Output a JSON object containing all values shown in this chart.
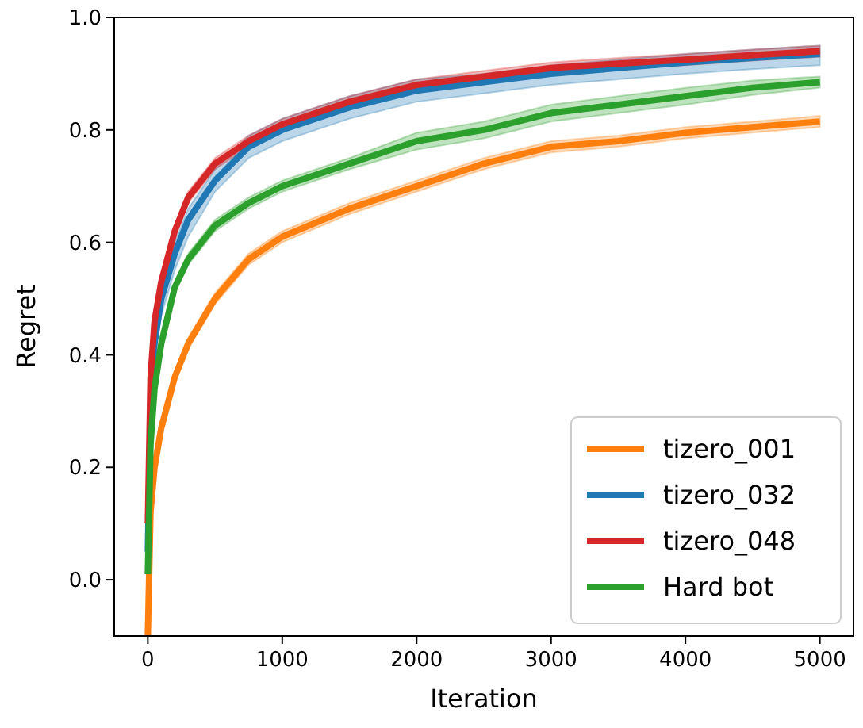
{
  "chart_data": {
    "type": "line",
    "xlabel": "Iteration",
    "ylabel": "Regret",
    "xlim": [
      -250,
      5250
    ],
    "ylim": [
      -0.1,
      1.0
    ],
    "xticks": [
      0,
      1000,
      2000,
      3000,
      4000,
      5000
    ],
    "yticks": [
      {
        "value": 0,
        "label": "0.0"
      },
      {
        "value": 0.2,
        "label": "0.2"
      },
      {
        "value": 0.4,
        "label": "0.4"
      },
      {
        "value": 0.6,
        "label": "0.6"
      },
      {
        "value": 0.8,
        "label": "0.8"
      },
      {
        "value": 1,
        "label": "1.0"
      }
    ],
    "legend": "bottom right",
    "grid": false,
    "x": [
      0,
      20,
      50,
      100,
      200,
      300,
      500,
      750,
      1000,
      1500,
      2000,
      2500,
      3000,
      3500,
      4000,
      4500,
      5000
    ],
    "series": [
      {
        "name": "tizero_001",
        "color": "#ff7f0e",
        "values": [
          -0.1,
          0.12,
          0.2,
          0.27,
          0.36,
          0.42,
          0.5,
          0.57,
          0.61,
          0.66,
          0.7,
          0.74,
          0.77,
          0.78,
          0.795,
          0.805,
          0.815
        ],
        "lower": [
          -0.1,
          0.11,
          0.19,
          0.26,
          0.35,
          0.41,
          0.49,
          0.56,
          0.6,
          0.65,
          0.69,
          0.73,
          0.76,
          0.77,
          0.785,
          0.795,
          0.805
        ],
        "upper": [
          -0.1,
          0.13,
          0.21,
          0.28,
          0.37,
          0.43,
          0.51,
          0.58,
          0.62,
          0.67,
          0.71,
          0.75,
          0.78,
          0.79,
          0.805,
          0.815,
          0.825
        ]
      },
      {
        "name": "tizero_032",
        "color": "#1f77b4",
        "values": [
          0.05,
          0.3,
          0.42,
          0.5,
          0.58,
          0.64,
          0.71,
          0.77,
          0.8,
          0.84,
          0.87,
          0.885,
          0.9,
          0.91,
          0.92,
          0.928,
          0.935
        ],
        "lower": [
          0.05,
          0.28,
          0.4,
          0.47,
          0.55,
          0.61,
          0.69,
          0.75,
          0.78,
          0.82,
          0.85,
          0.865,
          0.88,
          0.89,
          0.9,
          0.908,
          0.915
        ],
        "upper": [
          0.05,
          0.32,
          0.44,
          0.52,
          0.6,
          0.66,
          0.73,
          0.79,
          0.82,
          0.86,
          0.89,
          0.9,
          0.915,
          0.925,
          0.935,
          0.943,
          0.95
        ]
      },
      {
        "name": "tizero_048",
        "color": "#d62728",
        "values": [
          0.1,
          0.36,
          0.46,
          0.53,
          0.62,
          0.68,
          0.74,
          0.78,
          0.81,
          0.85,
          0.88,
          0.895,
          0.91,
          0.918,
          0.925,
          0.933,
          0.94
        ],
        "lower": [
          0.1,
          0.35,
          0.45,
          0.52,
          0.61,
          0.67,
          0.73,
          0.77,
          0.8,
          0.84,
          0.87,
          0.885,
          0.9,
          0.908,
          0.915,
          0.923,
          0.93
        ],
        "upper": [
          0.1,
          0.37,
          0.47,
          0.54,
          0.63,
          0.69,
          0.75,
          0.79,
          0.82,
          0.86,
          0.89,
          0.905,
          0.92,
          0.928,
          0.935,
          0.943,
          0.95
        ]
      },
      {
        "name": "Hard bot",
        "color": "#2ca02c",
        "values": [
          0.01,
          0.24,
          0.34,
          0.42,
          0.52,
          0.57,
          0.63,
          0.67,
          0.7,
          0.74,
          0.78,
          0.8,
          0.83,
          0.845,
          0.86,
          0.875,
          0.885
        ],
        "lower": [
          0.01,
          0.23,
          0.33,
          0.41,
          0.51,
          0.56,
          0.62,
          0.66,
          0.69,
          0.73,
          0.765,
          0.785,
          0.815,
          0.83,
          0.845,
          0.862,
          0.875
        ],
        "upper": [
          0.01,
          0.25,
          0.35,
          0.43,
          0.53,
          0.58,
          0.64,
          0.68,
          0.71,
          0.75,
          0.795,
          0.815,
          0.845,
          0.86,
          0.875,
          0.888,
          0.895
        ]
      }
    ]
  }
}
